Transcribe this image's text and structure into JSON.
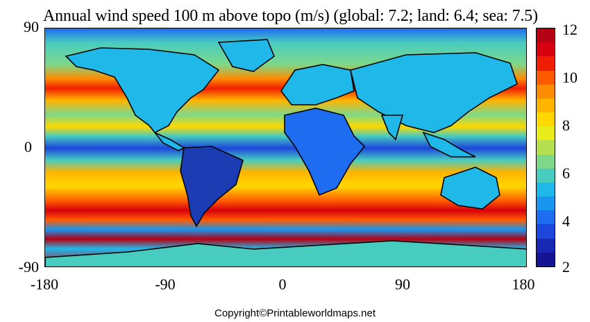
{
  "title": "Annual wind speed 100 m above topo (m/s) (global: 7.2; land: 6.4; sea: 7.5)",
  "y_ticks": [
    "90",
    "0",
    "-90"
  ],
  "x_ticks": [
    "-180",
    "-90",
    "0",
    "90",
    "180"
  ],
  "colorbar": {
    "ticks": [
      "12",
      "10",
      "8",
      "6",
      "4",
      "2"
    ],
    "range": [
      2,
      12
    ],
    "colors": [
      "#b40012",
      "#d7000e",
      "#f01e00",
      "#ff5a00",
      "#ff8c00",
      "#ffb400",
      "#ffd800",
      "#e8ec1a",
      "#b4e050",
      "#7ed88a",
      "#48ccc0",
      "#20b8e8",
      "#1896f0",
      "#1e6cf0",
      "#1c46dc",
      "#1828b4",
      "#141494"
    ]
  },
  "map": {
    "lon_range": [
      -180,
      180
    ],
    "lat_range": [
      -90,
      90
    ],
    "band_colors": {
      "polar_north": "#48ccc0",
      "westerlies_north": "#ff8c00",
      "trades_north": "#ffd800",
      "doldrums": "#1c46dc",
      "trades_south": "#ffb400",
      "westerlies_south": "#d7000e",
      "antarctic": "#1896f0"
    },
    "land_color": "#20b8e8",
    "low_wind_land": "#1c3cb4"
  },
  "copyright": "Copyright©Printableworldmaps.net"
}
